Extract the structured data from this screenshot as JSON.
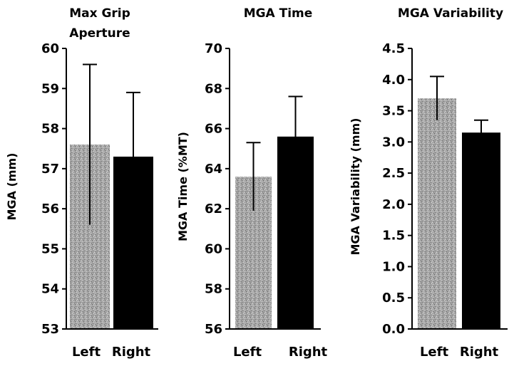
{
  "chart_data": [
    {
      "type": "bar",
      "title_lines": [
        "Max Grip",
        "Aperture"
      ],
      "ylabel": "MGA (mm)",
      "categories": [
        "Left",
        "Right"
      ],
      "values": [
        57.6,
        57.3
      ],
      "errors": [
        2.0,
        1.6
      ],
      "ylim": [
        53,
        60
      ],
      "yticks": [
        "53",
        "54",
        "55",
        "56",
        "57",
        "58",
        "59",
        "60"
      ],
      "grid": false,
      "legend": "none"
    },
    {
      "type": "bar",
      "title_lines": [
        "MGA Time"
      ],
      "ylabel": "MGA Time (%MT)",
      "categories": [
        "Left",
        "Right"
      ],
      "values": [
        63.6,
        65.6
      ],
      "errors": [
        1.7,
        2.0
      ],
      "ylim": [
        56,
        70
      ],
      "yticks": [
        "56",
        "58",
        "60",
        "62",
        "64",
        "66",
        "68",
        "70"
      ],
      "grid": false,
      "legend": "none"
    },
    {
      "type": "bar",
      "title_lines": [
        "MGA Variability"
      ],
      "ylabel": "MGA Variability (mm)",
      "categories": [
        "Left",
        "Right"
      ],
      "values": [
        3.7,
        3.15
      ],
      "errors": [
        0.35,
        0.2
      ],
      "ylim": [
        0,
        4.5
      ],
      "yticks": [
        "0.0",
        "0.5",
        "1.0",
        "1.5",
        "2.0",
        "2.5",
        "3.0",
        "3.5",
        "4.0",
        "4.5"
      ],
      "grid": false,
      "legend": "none"
    }
  ],
  "colors": {
    "left_bar": "#a6a6a6",
    "right_bar": "#000000",
    "error_bar": "#000000"
  }
}
